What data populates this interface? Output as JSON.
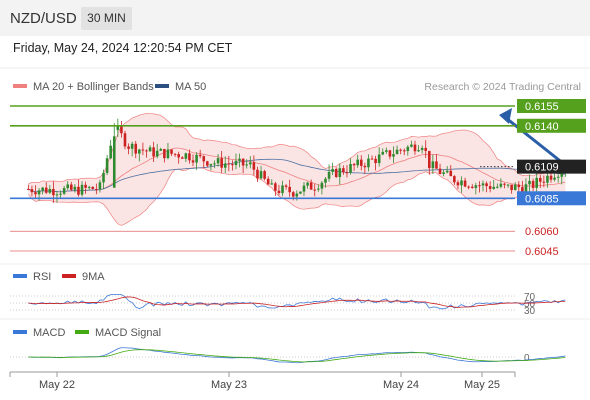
{
  "header": {
    "symbol": "NZD/USD",
    "timeframe": "30 MIN"
  },
  "datetime": "Friday, May 24, 2024 12:20:54 PM CET",
  "legend": {
    "bollinger": "MA 20 + Bollinger Bands",
    "ma50": "MA 50",
    "source": "Research © 2024 Trading Central",
    "rsi": "RSI",
    "rsi_ma": "9MA",
    "macd": "MACD",
    "macd_signal": "MACD Signal"
  },
  "colors": {
    "bullish": "#2f8a2f",
    "bearish": "#cc2222",
    "resistance": "#55a01c",
    "support": "#3a78d8",
    "lower_levels": "#e06666",
    "current": "#222222",
    "bollinger": "#f08080",
    "ma50": "#4a6fa0",
    "arrow": "#2a5fa8"
  },
  "chart_data": {
    "type": "candlestick",
    "instrument": "NZD/USD",
    "timeframe": "30 MIN",
    "x_ticks": [
      "May 22",
      "May 23",
      "May 24",
      "May 25"
    ],
    "levels": [
      {
        "value": "0.6155",
        "kind": "resistance"
      },
      {
        "value": "0.6140",
        "kind": "resistance"
      },
      {
        "value": "0.6109",
        "kind": "current"
      },
      {
        "value": "0.6085",
        "kind": "support"
      },
      {
        "value": "0.6060",
        "kind": "lower"
      },
      {
        "value": "0.6045",
        "kind": "lower"
      }
    ],
    "price_range": [
      0.604,
      0.616
    ],
    "close_path": [
      [
        "2024-05-21T20:00",
        0.6092
      ],
      [
        "2024-05-22T02:00",
        0.6091
      ],
      [
        "2024-05-22T06:00",
        0.6093
      ],
      [
        "2024-05-22T08:00",
        0.6139
      ],
      [
        "2024-05-22T10:00",
        0.6125
      ],
      [
        "2024-05-22T13:00",
        0.612
      ],
      [
        "2024-05-22T18:00",
        0.6118
      ],
      [
        "2024-05-22T22:00",
        0.6112
      ],
      [
        "2024-05-23T03:00",
        0.611
      ],
      [
        "2024-05-23T06:00",
        0.6092
      ],
      [
        "2024-05-23T09:00",
        0.609
      ],
      [
        "2024-05-23T12:00",
        0.6095
      ],
      [
        "2024-05-23T15:00",
        0.6105
      ],
      [
        "2024-05-23T19:00",
        0.6112
      ],
      [
        "2024-05-23T23:00",
        0.612
      ],
      [
        "2024-05-24T03:00",
        0.6127
      ],
      [
        "2024-05-24T04:00",
        0.611
      ],
      [
        "2024-05-24T07:00",
        0.61
      ],
      [
        "2024-05-24T11:00",
        0.6095
      ],
      [
        "2024-05-24T15:00",
        0.6093
      ],
      [
        "2024-05-24T18:00",
        0.6094
      ],
      [
        "2024-05-24T21:00",
        0.6103
      ],
      [
        "2024-05-24T23:00",
        0.6109
      ]
    ],
    "forecast": {
      "from": 0.6109,
      "to": 0.6155
    },
    "rsi": {
      "levels": [
        70,
        50,
        30
      ]
    },
    "macd": {
      "levels": [
        0
      ]
    }
  }
}
